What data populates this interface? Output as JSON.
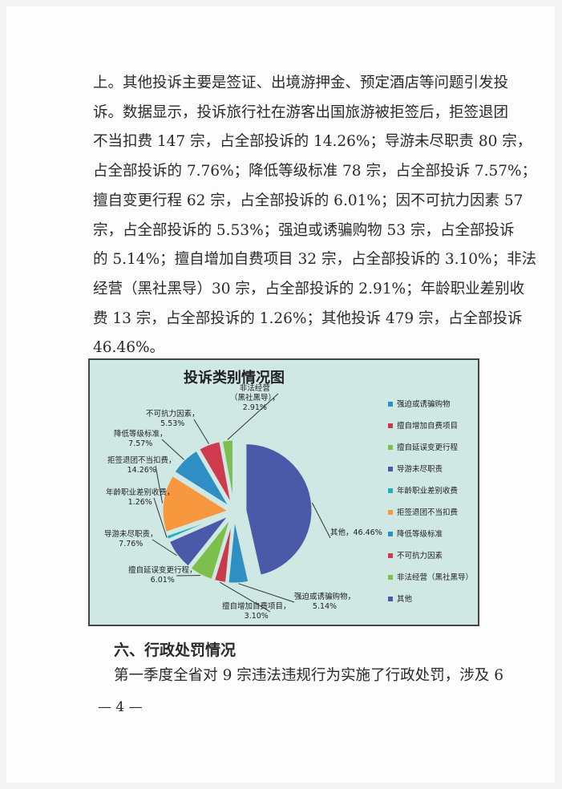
{
  "paragraph_lines": [
    "上。其他投诉主要是签证、出境游押金、预定酒店等问题引发投",
    "诉。数据显示，投诉旅行社在游客出国旅游被拒签后，拒签退团",
    "不当扣费 147 宗，占全部投诉的 14.26%；导游未尽职责 80 宗，",
    "占全部投诉的 7.76%；降低等级标准 78 宗，占全部投诉 7.57%；",
    "擅自变更行程 62 宗，占全部投诉的 6.01%；因不可抗力因素 57",
    "宗，占全部投诉的 5.53%；强迫或诱骗购物 53 宗，占全部投诉",
    "的 5.14%；擅自增加自费项目 32 宗，占全部投诉的 3.10%；非法",
    "经营（黑社黑导）30 宗，占全部投诉的 2.91%；年龄职业差别收",
    "费 13 宗，占全部投诉的 1.26%；其他投诉 479 宗，占全部投诉",
    "46.46%。"
  ],
  "chart_data": {
    "type": "pie",
    "title": "投诉类别情况图",
    "legend_position": "right",
    "slices": [
      {
        "name": "其他",
        "label": "其他，46.46%",
        "value": 46.46,
        "color": "#4b5aa8"
      },
      {
        "name": "强迫或诱骗购物",
        "label": "强迫或诱骗购物，\n5.14%",
        "value": 5.14,
        "color": "#2f8ec4"
      },
      {
        "name": "擅自增加自费项目",
        "label": "擅自增加自费项目，\n3.10%",
        "value": 3.1,
        "color": "#c93a4c"
      },
      {
        "name": "擅自延误变更行程",
        "label": "擅自延误变更行程，\n6.01%",
        "value": 6.01,
        "color": "#7dbf4c"
      },
      {
        "name": "导游未尽职责",
        "label": "导游未尽职责，\n7.76%",
        "value": 7.76,
        "color": "#4b5aa8"
      },
      {
        "name": "年龄职业差别收费",
        "label": "年龄职业差别收费，\n1.26%",
        "value": 1.26,
        "color": "#1fb3c2"
      },
      {
        "name": "拒签退团不当扣费",
        "label": "拒签退团不当扣费，\n14.26%",
        "value": 14.26,
        "color": "#f7983f"
      },
      {
        "name": "降低等级标准",
        "label": "降低等级标准，\n7.57%",
        "value": 7.57,
        "color": "#2f8ec4"
      },
      {
        "name": "不可抗力因素",
        "label": "不可抗力因素，\n5.53%",
        "value": 5.53,
        "color": "#cf3a4e"
      },
      {
        "name": "非法经营（黑社黑导）",
        "label": "非法经营\n（黑社黑导），\n2.91%",
        "value": 2.91,
        "color": "#7dbf4c"
      }
    ],
    "legend": [
      {
        "text": "强迫或诱骗购物",
        "color": "#2f8ec4"
      },
      {
        "text": "擅自增加自费项目",
        "color": "#c93a4c"
      },
      {
        "text": "擅自延误变更行程",
        "color": "#7dbf4c"
      },
      {
        "text": "导游未尽职责",
        "color": "#4b5aa8"
      },
      {
        "text": "年龄职业差别收费",
        "color": "#1fb3c2"
      },
      {
        "text": "拒签退团不当扣费",
        "color": "#f7983f"
      },
      {
        "text": "降低等级标准",
        "color": "#2f8ec4"
      },
      {
        "text": "不可抗力因素",
        "color": "#cf3a4e"
      },
      {
        "text": "非法经营（黑社黑导）",
        "color": "#7dbf4c"
      },
      {
        "text": "其他",
        "color": "#4b5aa8"
      }
    ]
  },
  "section_heading": "六、行政处罚情况",
  "section_line": "第一季度全省对 9 宗违法违规行为实施了行政处罚，涉及 6",
  "page_number": "— 4 —"
}
